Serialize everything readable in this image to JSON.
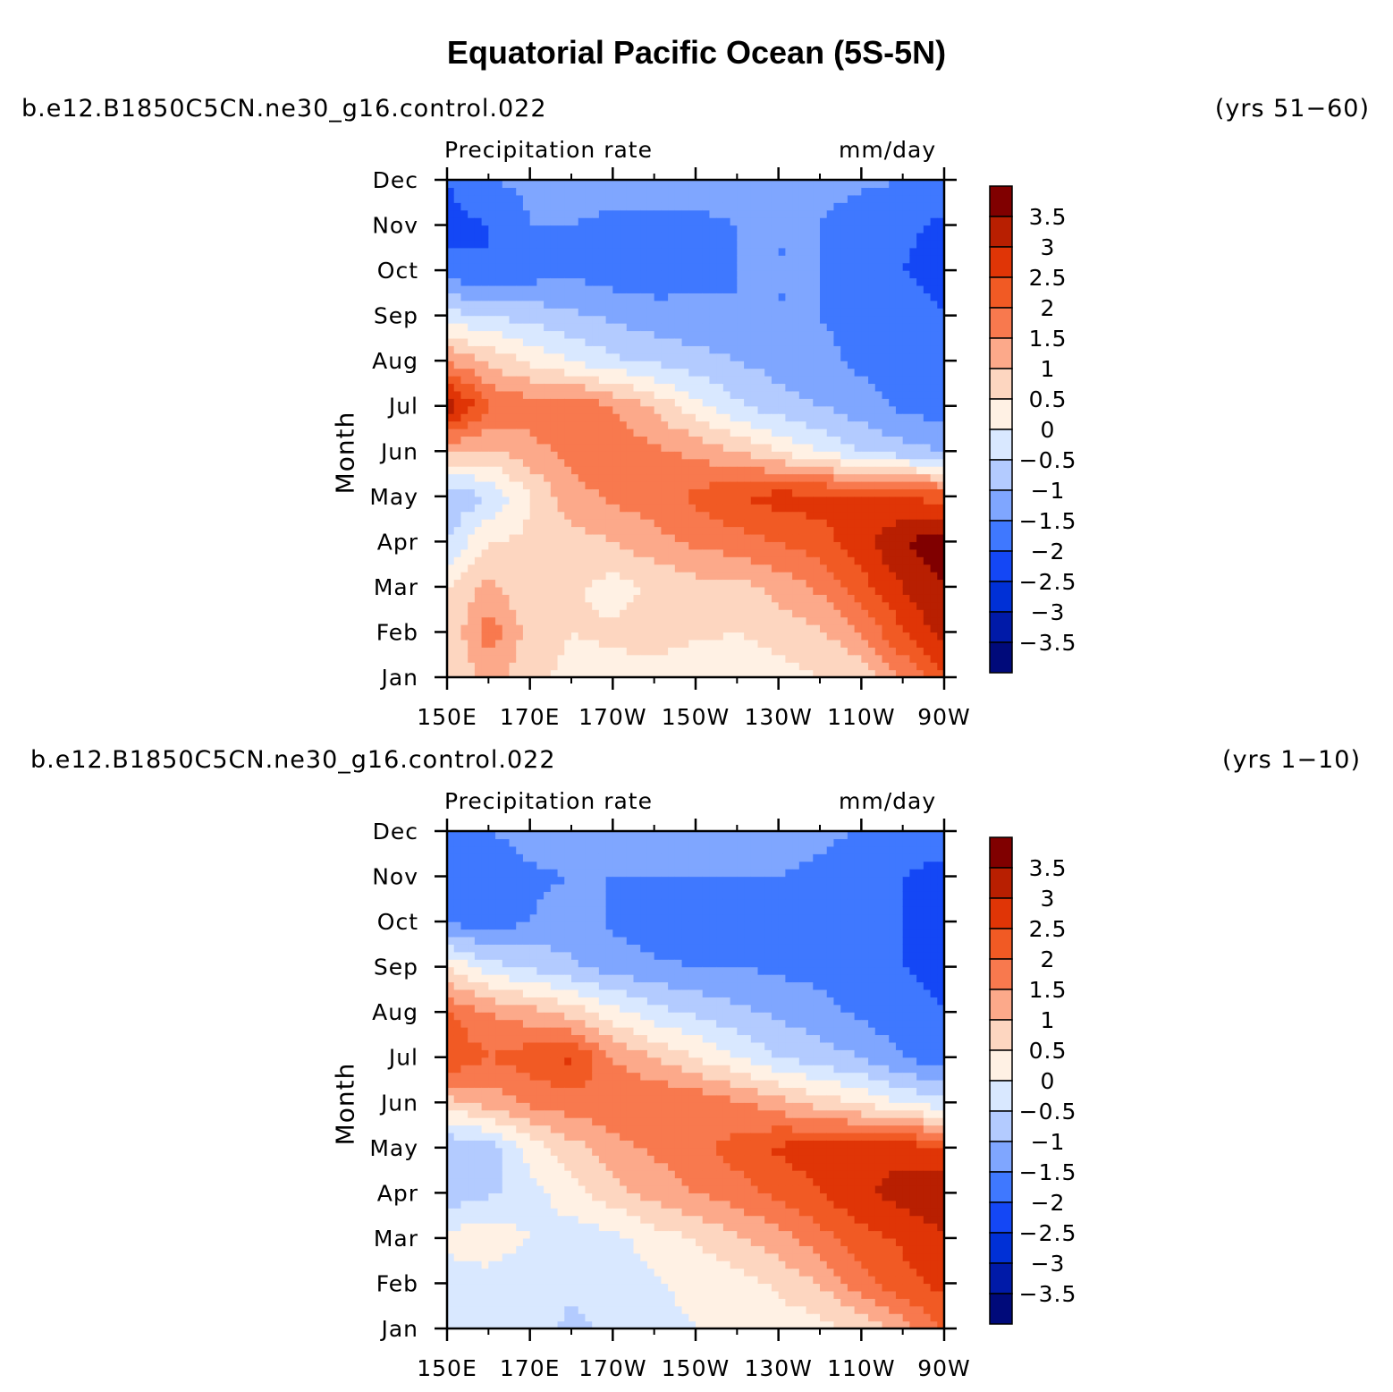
{
  "title": "Equatorial Pacific Ocean (5S-5N)",
  "colorbar": {
    "levels": [
      -3.5,
      -3,
      -2.5,
      -2,
      -1.5,
      -1,
      -0.5,
      0,
      0.5,
      1,
      1.5,
      2,
      2.5,
      3,
      3.5
    ],
    "labels": [
      "3.5",
      "3",
      "2.5",
      "2",
      "1.5",
      "1",
      "0.5",
      "0",
      "−0.5",
      "−1",
      "−1.5",
      "−2",
      "−2.5",
      "−3",
      "−3.5"
    ],
    "colors": [
      "#000a7a",
      "#001aa8",
      "#0030d6",
      "#1447f5",
      "#3f78ff",
      "#7fa6ff",
      "#b3cbff",
      "#d9e8ff",
      "#fff1e4",
      "#fdd6c0",
      "#fca98a",
      "#f8794e",
      "#f15a24",
      "#e03506",
      "#b81f01",
      "#800000"
    ]
  },
  "chart_data": [
    {
      "type": "heatmap",
      "case": "b.e12.B1850C5CN.ne30_g16.control.022",
      "period": "(yrs 51−60)",
      "variable": "Precipitation rate",
      "units": "mm/day",
      "ylabel": "Month",
      "x_ticks": [
        "150E",
        "170E",
        "170W",
        "150W",
        "130W",
        "110W",
        "90W"
      ],
      "y_ticks": [
        "Jan",
        "Feb",
        "Mar",
        "Apr",
        "May",
        "Jun",
        "Jul",
        "Aug",
        "Sep",
        "Oct",
        "Nov",
        "Dec"
      ],
      "x_lon": [
        150,
        160,
        170,
        180,
        190,
        200,
        210,
        220,
        230,
        240,
        250,
        260,
        270
      ],
      "y_month": [
        "Jan",
        "Feb",
        "Mar",
        "Apr",
        "May",
        "Jun",
        "Jul",
        "Aug",
        "Sep",
        "Oct",
        "Nov",
        "Dec"
      ],
      "z": [
        [
          0.5,
          1.2,
          0.7,
          0.3,
          0.3,
          0.2,
          0.0,
          0.1,
          0.3,
          0.5,
          0.6,
          1.5,
          2.5
        ],
        [
          0.5,
          1.8,
          0.8,
          0.5,
          0.6,
          0.8,
          0.6,
          0.5,
          0.7,
          0.9,
          1.5,
          2.5,
          3.2
        ],
        [
          0.5,
          1.2,
          0.5,
          0.6,
          0.3,
          0.6,
          0.8,
          0.8,
          1.2,
          1.6,
          2.3,
          3.0,
          3.5
        ],
        [
          -0.5,
          0.5,
          0.6,
          0.8,
          1.0,
          1.3,
          1.6,
          1.8,
          2.0,
          2.3,
          2.8,
          3.5,
          3.8
        ],
        [
          -1.0,
          -0.5,
          0.5,
          1.3,
          1.6,
          1.8,
          2.1,
          2.5,
          2.7,
          2.7,
          2.6,
          2.5,
          2.3
        ],
        [
          1.0,
          0.9,
          1.3,
          1.7,
          1.8,
          1.6,
          1.4,
          1.0,
          0.5,
          0.0,
          -0.5,
          -0.8,
          -1.0
        ],
        [
          3.5,
          2.0,
          1.8,
          1.9,
          1.5,
          0.9,
          0.2,
          -0.4,
          -0.8,
          -1.0,
          -1.3,
          -1.6,
          -1.8
        ],
        [
          1.5,
          0.9,
          0.4,
          0.0,
          -0.4,
          -0.6,
          -0.8,
          -1.0,
          -1.2,
          -1.4,
          -1.6,
          -1.8,
          -2.0
        ],
        [
          -0.3,
          -0.5,
          -0.7,
          -0.9,
          -1.1,
          -1.3,
          -1.4,
          -1.5,
          -1.5,
          -1.5,
          -1.6,
          -1.8,
          -2.0
        ],
        [
          -1.8,
          -2.0,
          -1.8,
          -1.6,
          -1.8,
          -1.8,
          -1.6,
          -1.5,
          -1.5,
          -1.5,
          -1.9,
          -2.0,
          -2.2
        ],
        [
          -2.2,
          -2.0,
          -1.5,
          -1.5,
          -1.6,
          -1.6,
          -1.6,
          -1.5,
          -1.5,
          -1.5,
          -1.8,
          -1.9,
          -2.1
        ],
        [
          -2.0,
          -1.5,
          -1.4,
          -1.3,
          -1.3,
          -1.3,
          -1.3,
          -1.3,
          -1.3,
          -1.3,
          -1.4,
          -1.5,
          -1.6
        ]
      ]
    },
    {
      "type": "heatmap",
      "case": "b.e12.B1850C5CN.ne30_g16.control.022",
      "period": "(yrs 1−10)",
      "variable": "Precipitation rate",
      "units": "mm/day",
      "ylabel": "Month",
      "x_ticks": [
        "150E",
        "170E",
        "170W",
        "150W",
        "130W",
        "110W",
        "90W"
      ],
      "y_ticks": [
        "Jan",
        "Feb",
        "Mar",
        "Apr",
        "May",
        "Jun",
        "Jul",
        "Aug",
        "Sep",
        "Oct",
        "Nov",
        "Dec"
      ],
      "x_lon": [
        150,
        160,
        170,
        180,
        190,
        200,
        210,
        220,
        230,
        240,
        250,
        260,
        270
      ],
      "y_month": [
        "Jan",
        "Feb",
        "Mar",
        "Apr",
        "May",
        "Jun",
        "Jul",
        "Aug",
        "Sep",
        "Oct",
        "Nov",
        "Dec"
      ],
      "z": [
        [
          -0.3,
          -0.2,
          -0.3,
          -0.6,
          -0.4,
          -0.2,
          0.0,
          0.1,
          0.2,
          0.3,
          0.6,
          1.3,
          2.0
        ],
        [
          -0.3,
          -0.2,
          -0.4,
          -0.4,
          -0.3,
          -0.1,
          0.2,
          0.3,
          0.6,
          1.0,
          1.8,
          2.3,
          2.7
        ],
        [
          0.2,
          0.3,
          0.0,
          -0.3,
          -0.2,
          0.3,
          0.5,
          0.9,
          1.3,
          1.8,
          2.3,
          2.6,
          2.9
        ],
        [
          -0.8,
          -0.6,
          -0.2,
          0.3,
          0.8,
          1.2,
          1.5,
          1.8,
          2.1,
          2.5,
          2.9,
          3.2,
          3.4
        ],
        [
          -1.0,
          -0.8,
          0.2,
          0.8,
          1.3,
          1.6,
          1.8,
          2.2,
          2.6,
          2.8,
          2.9,
          2.8,
          2.6
        ],
        [
          0.8,
          1.2,
          1.6,
          1.8,
          1.9,
          2.0,
          1.9,
          1.6,
          1.2,
          0.8,
          0.4,
          0.0,
          -0.4
        ],
        [
          2.5,
          2.0,
          2.3,
          2.6,
          1.5,
          1.0,
          0.5,
          0.0,
          -0.5,
          -0.8,
          -1.0,
          -1.5,
          -1.8
        ],
        [
          2.0,
          1.5,
          1.2,
          0.8,
          0.2,
          -0.3,
          -0.6,
          -0.9,
          -1.1,
          -1.3,
          -1.6,
          -1.9,
          -2.0
        ],
        [
          0.5,
          -0.3,
          -0.6,
          -0.9,
          -1.2,
          -1.4,
          -1.5,
          -1.5,
          -1.6,
          -1.7,
          -1.9,
          -2.0,
          -2.1
        ],
        [
          -1.6,
          -1.8,
          -1.5,
          -1.2,
          -1.6,
          -1.8,
          -1.9,
          -1.6,
          -1.5,
          -1.6,
          -1.9,
          -2.0,
          -2.2
        ],
        [
          -2.0,
          -1.9,
          -1.6,
          -1.5,
          -1.5,
          -1.5,
          -1.5,
          -1.5,
          -1.5,
          -1.6,
          -1.9,
          -2.0,
          -2.2
        ],
        [
          -1.8,
          -1.5,
          -1.3,
          -1.2,
          -1.2,
          -1.3,
          -1.3,
          -1.3,
          -1.3,
          -1.4,
          -1.5,
          -1.6,
          -1.7
        ]
      ]
    }
  ]
}
